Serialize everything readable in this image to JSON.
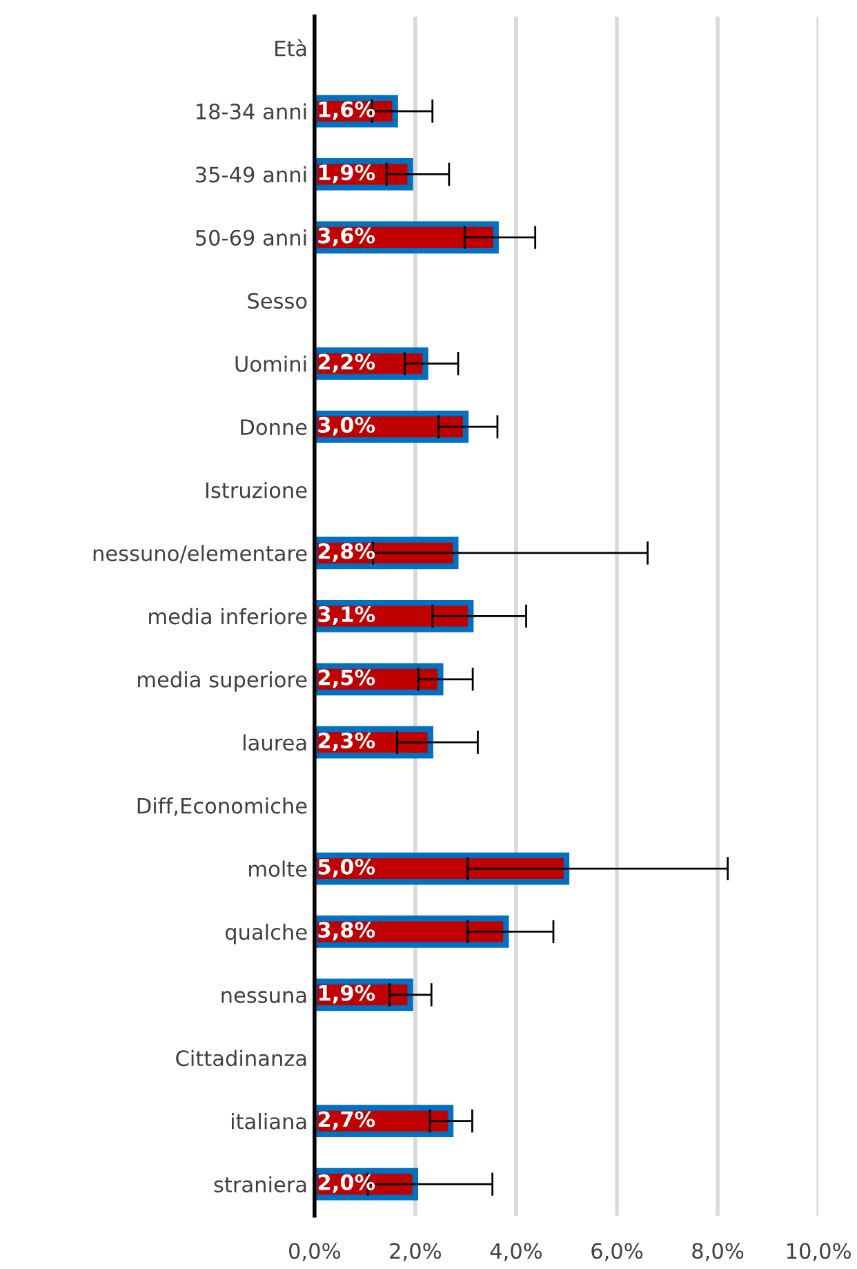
{
  "chart_data": {
    "type": "bar",
    "orientation": "horizontal",
    "categories": [
      "Età",
      "18-34 anni",
      "35-49 anni",
      "50-69 anni",
      "Sesso",
      "Uomini",
      "Donne",
      "Istruzione",
      "nessuno/elementare",
      "media inferiore",
      "media superiore",
      "laurea",
      "Diff,Economiche",
      "molte",
      "qualche",
      "nessuna",
      "Cittadinanza",
      "italiana",
      "straniera"
    ],
    "series": [
      {
        "color": "#c00000",
        "values": [
          null,
          1.6,
          1.9,
          3.6,
          null,
          2.2,
          3.0,
          null,
          2.8,
          3.1,
          2.5,
          2.3,
          null,
          5.0,
          3.8,
          1.9,
          null,
          2.7,
          2.0
        ],
        "value_labels": [
          null,
          "1,6%",
          "1,9%",
          "3,6%",
          null,
          "2,2%",
          "3,0%",
          null,
          "2,8%",
          "3,1%",
          "2,5%",
          "2,3%",
          null,
          "5,0%",
          "3,8%",
          "1,9%",
          null,
          "2,7%",
          "2,0%"
        ],
        "errors": [
          null,
          [
            1.14,
            2.34
          ],
          [
            1.43,
            2.67
          ],
          [
            2.98,
            4.38
          ],
          null,
          [
            1.79,
            2.85
          ],
          [
            2.46,
            3.63
          ],
          null,
          [
            1.16,
            6.61
          ],
          [
            2.34,
            4.2
          ],
          [
            2.06,
            3.14
          ],
          [
            1.64,
            3.24
          ],
          null,
          [
            3.04,
            8.2
          ],
          [
            3.04,
            4.74
          ],
          [
            1.49,
            2.32
          ],
          null,
          [
            2.29,
            3.13
          ],
          [
            1.06,
            3.53
          ]
        ]
      }
    ],
    "xlim": [
      0,
      10
    ],
    "xticks": [
      {
        "value": 0,
        "label": "0,0%"
      },
      {
        "value": 2,
        "label": "2,0%"
      },
      {
        "value": 4,
        "label": "4,0%"
      },
      {
        "value": 6,
        "label": "6,0%"
      },
      {
        "value": 8,
        "label": "8,0%"
      },
      {
        "value": 10,
        "label": "10,0%"
      }
    ],
    "grid": "x",
    "legend": false
  }
}
